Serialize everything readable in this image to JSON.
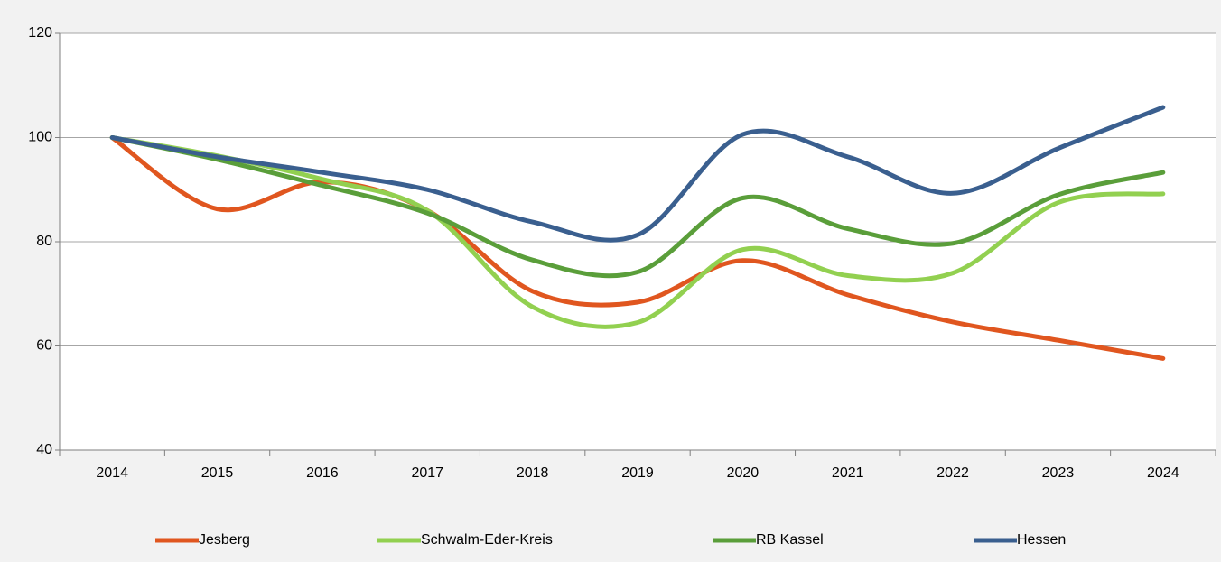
{
  "chart_data": {
    "type": "line",
    "categories": [
      "2014",
      "2015",
      "2016",
      "2017",
      "2018",
      "2019",
      "2020",
      "2021",
      "2022",
      "2023",
      "2024"
    ],
    "series": [
      {
        "name": "Jesberg",
        "color": "#e0561f",
        "values": [
          100,
          86.3,
          91.5,
          86,
          70.5,
          68.4,
          76.4,
          69.8,
          64.6,
          61.1,
          57.6
        ]
      },
      {
        "name": "Schwalm-Eder-Kreis",
        "color": "#92d050",
        "values": [
          100,
          96.5,
          92,
          86,
          67.5,
          64.5,
          78.5,
          73.5,
          74,
          87.5,
          89.2
        ]
      },
      {
        "name": "RB Kassel",
        "color": "#5a9e3a",
        "values": [
          100,
          95.8,
          90.8,
          85.5,
          76.5,
          74.2,
          88.4,
          82.5,
          79.7,
          89,
          93.3
        ]
      },
      {
        "name": "Hessen",
        "color": "#3a5f8f",
        "values": [
          100,
          96.3,
          93.3,
          90,
          83.8,
          81.3,
          100.6,
          96.3,
          89.3,
          97.9,
          105.8
        ]
      }
    ],
    "ylim": [
      40,
      120
    ],
    "yticks": [
      40,
      60,
      80,
      100,
      120
    ],
    "grid": true,
    "legend": "bottom",
    "smooth": true
  }
}
